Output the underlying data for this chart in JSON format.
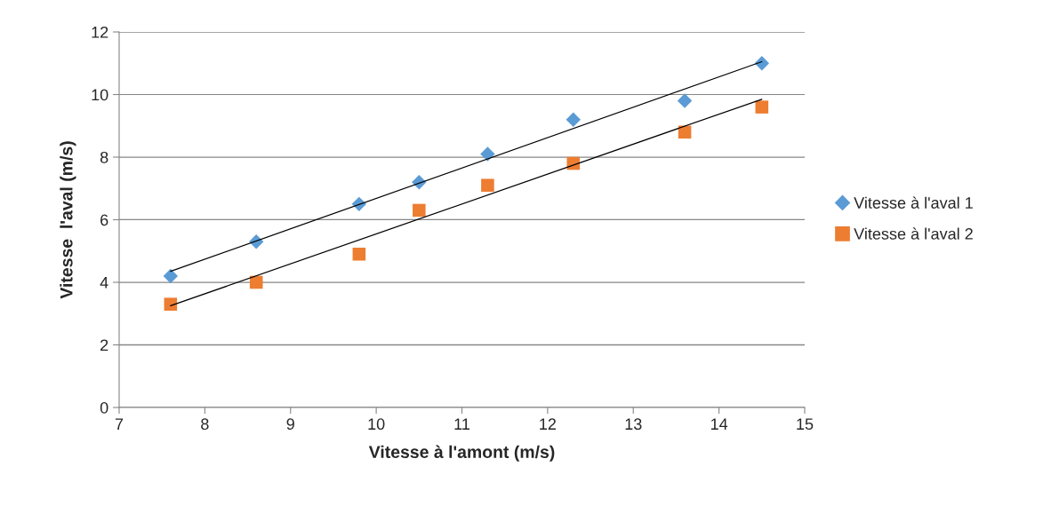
{
  "chart_data": {
    "type": "scatter",
    "xlabel": "Vitesse à l'amont (m/s)",
    "ylabel": "Vitesse  l'aval (m/s)",
    "xlim": [
      7,
      15
    ],
    "xticks": [
      7,
      8,
      9,
      10,
      11,
      12,
      13,
      14,
      15
    ],
    "ylim": [
      0,
      12
    ],
    "yticks": [
      0,
      2,
      4,
      6,
      8,
      10,
      12
    ],
    "grid": "y",
    "legend": "right",
    "series": [
      {
        "name": "Vitesse à l'aval 1",
        "color": "#5b9bd5",
        "marker": "diamond",
        "x": [
          7.6,
          8.6,
          9.8,
          10.5,
          11.3,
          12.3,
          13.6,
          14.5
        ],
        "values": [
          4.2,
          5.3,
          6.5,
          7.2,
          8.1,
          9.2,
          9.8,
          11.0
        ]
      },
      {
        "name": "Vitesse à l'aval 2",
        "color": "#ed7d31",
        "marker": "square",
        "x": [
          7.6,
          8.6,
          9.8,
          10.5,
          11.3,
          12.3,
          13.6,
          14.5
        ],
        "values": [
          3.3,
          4.0,
          4.9,
          6.3,
          7.1,
          7.8,
          8.8,
          9.6
        ]
      },
      {
        "type": "line",
        "color": "#000000",
        "marker": "none",
        "x": [
          7.6,
          14.5
        ],
        "values": [
          4.35,
          11.05
        ]
      },
      {
        "type": "line",
        "color": "#000000",
        "marker": "none",
        "x": [
          7.6,
          14.5
        ],
        "values": [
          3.25,
          9.85
        ]
      }
    ]
  }
}
